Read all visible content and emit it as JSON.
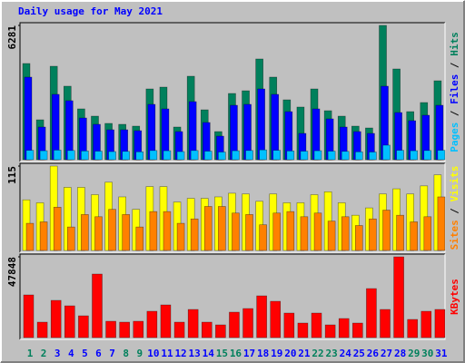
{
  "chart_data": [
    {
      "type": "bar",
      "title": "Daily usage for May 2021",
      "legend_separator": " / ",
      "ylim": [
        0,
        6281
      ],
      "yticks": [
        6281
      ],
      "series": [
        {
          "name": "Hits",
          "color": "#00805c",
          "values": [
            4499,
            1867,
            4371,
            3438,
            2377,
            2037,
            1698,
            1655,
            1570,
            3310,
            3395,
            1528,
            3904,
            2334,
            1316,
            3098,
            3225,
            4711,
            3862,
            2801,
            2462,
            3310,
            2292,
            2037,
            1570,
            1485,
            6281,
            4244,
            2249,
            2674,
            3692
          ]
        },
        {
          "name": "Files",
          "color": "#0000ff",
          "values": [
            3862,
            1528,
            3056,
            2759,
            1952,
            1655,
            1401,
            1401,
            1358,
            2589,
            2377,
            1316,
            2716,
            1740,
            1103,
            2546,
            2589,
            3310,
            3056,
            2249,
            1231,
            2377,
            1910,
            1528,
            1316,
            1231,
            3438,
            2207,
            1825,
            2080,
            2546
          ]
        },
        {
          "name": "Pages",
          "color": "#00c0ff",
          "values": [
            440,
            420,
            450,
            430,
            410,
            400,
            380,
            390,
            370,
            430,
            420,
            380,
            430,
            400,
            360,
            420,
            430,
            460,
            440,
            410,
            400,
            420,
            400,
            390,
            370,
            360,
            680,
            440,
            420,
            430,
            440
          ]
        }
      ]
    },
    {
      "type": "bar",
      "legend_separator": " / ",
      "ylim": [
        0,
        115
      ],
      "yticks": [
        115
      ],
      "series": [
        {
          "name": "Visits",
          "color": "#ffff00",
          "values": [
            69,
            65,
            115,
            86,
            86,
            76,
            93,
            73,
            56,
            87,
            87,
            66,
            71,
            71,
            73,
            78,
            77,
            67,
            77,
            65,
            65,
            76,
            80,
            65,
            48,
            58,
            77,
            84,
            77,
            88,
            103
          ]
        },
        {
          "name": "Sites",
          "color": "#ff8000",
          "values": [
            37,
            39,
            59,
            32,
            49,
            46,
            56,
            49,
            32,
            53,
            53,
            37,
            43,
            60,
            60,
            51,
            49,
            35,
            51,
            53,
            46,
            51,
            40,
            46,
            34,
            43,
            55,
            48,
            39,
            46,
            73
          ]
        }
      ]
    },
    {
      "type": "bar",
      "ylim": [
        0,
        47848
      ],
      "yticks": [
        47848
      ],
      "categories": [
        1,
        2,
        3,
        4,
        5,
        6,
        7,
        8,
        9,
        10,
        11,
        12,
        13,
        14,
        15,
        16,
        17,
        18,
        19,
        20,
        21,
        22,
        23,
        24,
        25,
        26,
        27,
        28,
        29,
        30,
        31
      ],
      "category_colors": [
        "#00805c",
        "#00805c",
        "#0000ff",
        "#0000ff",
        "#0000ff",
        "#0000ff",
        "#0000ff",
        "#00805c",
        "#00805c",
        "#0000ff",
        "#0000ff",
        "#0000ff",
        "#0000ff",
        "#0000ff",
        "#00805c",
        "#00805c",
        "#0000ff",
        "#0000ff",
        "#0000ff",
        "#0000ff",
        "#0000ff",
        "#00805c",
        "#00805c",
        "#0000ff",
        "#0000ff",
        "#0000ff",
        "#0000ff",
        "#0000ff",
        "#00805c",
        "#00805c",
        "#0000ff"
      ],
      "series": [
        {
          "name": "KBytes",
          "color": "#ff0000",
          "values": [
            25267,
            9139,
            22042,
            18816,
            12902,
            37632,
            9677,
            9139,
            9677,
            15590,
            19354,
            9139,
            16666,
            9139,
            7526,
            15053,
            17203,
            24730,
            21504,
            14515,
            8602,
            14515,
            7526,
            11290,
            8602,
            29030,
            16666,
            47848,
            10752,
            15590,
            16666
          ]
        }
      ]
    }
  ]
}
